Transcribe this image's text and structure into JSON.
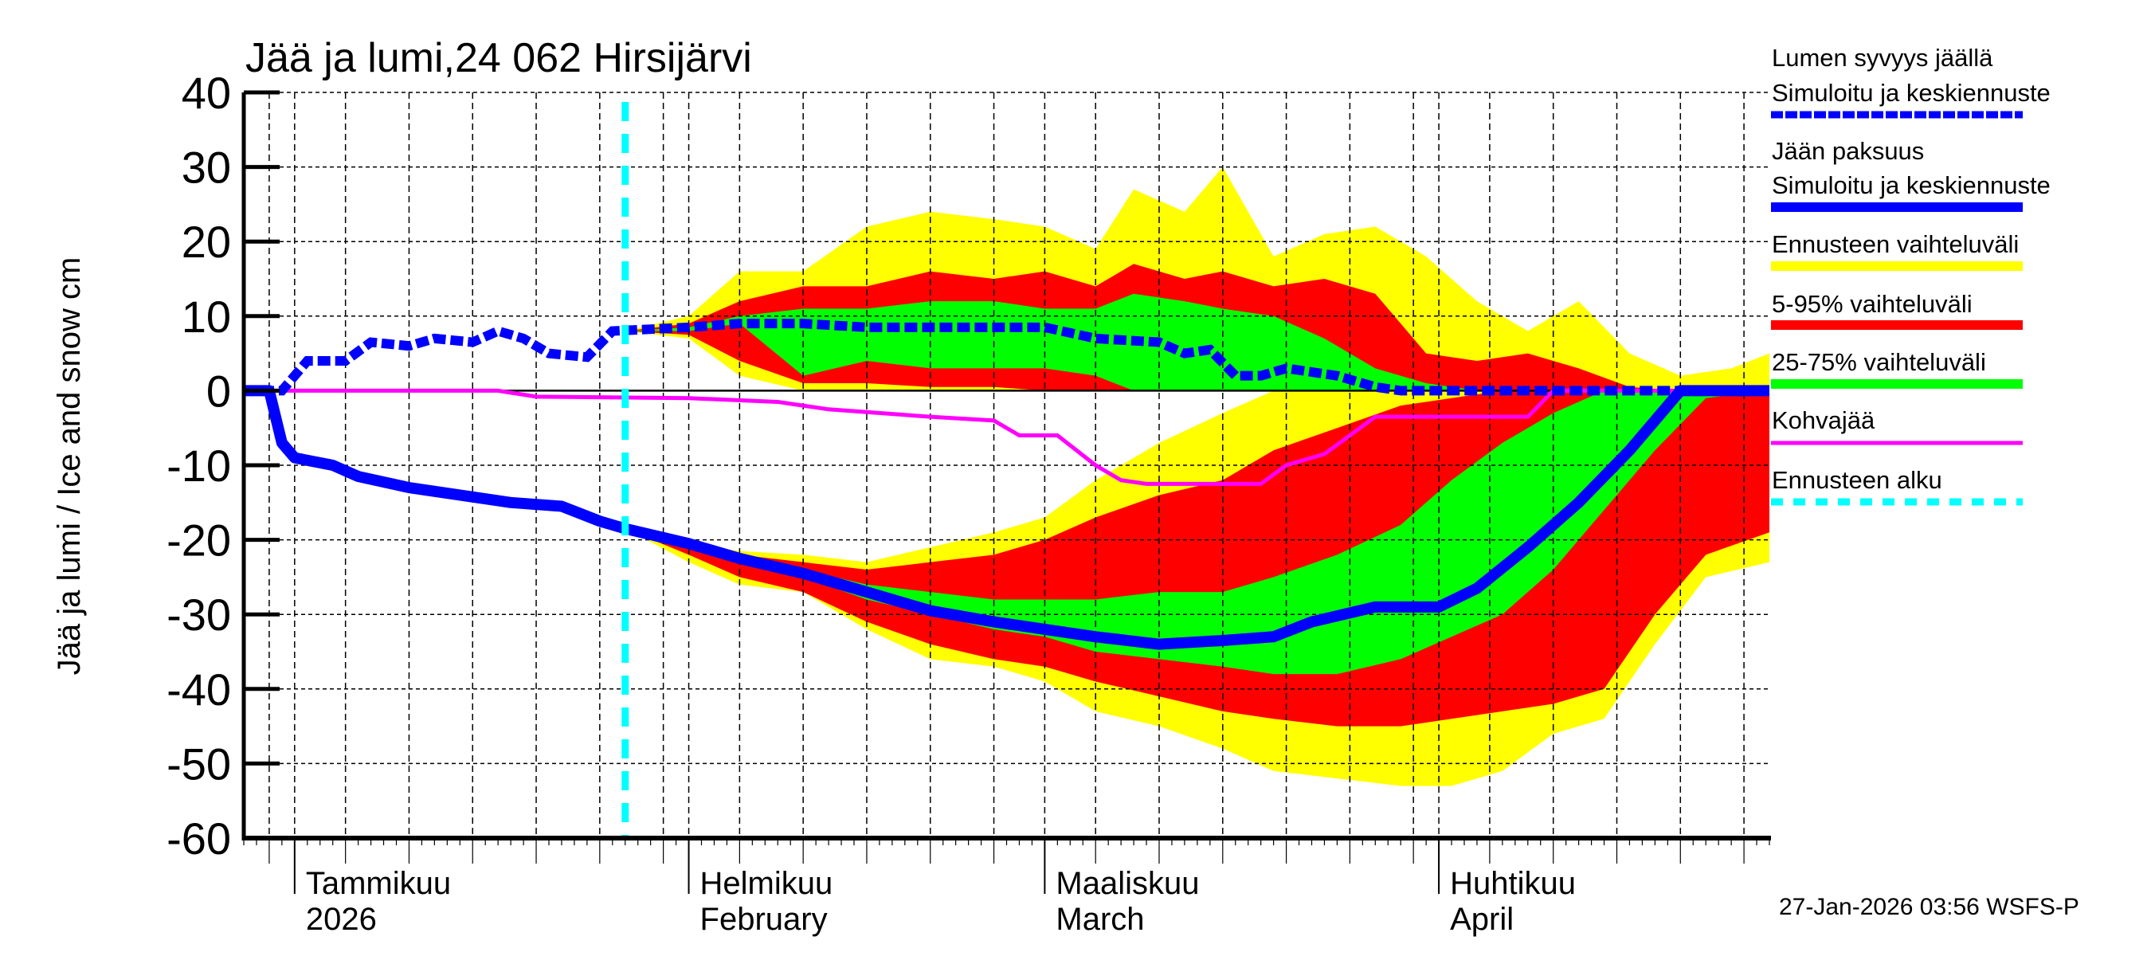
{
  "chart_data": {
    "type": "area",
    "title": "Jää ja lumi,24 062 Hirsijärvi",
    "ylabel": "Jää ja lumi / Ice and snow    cm",
    "ylim": [
      -60,
      40
    ],
    "yticks": [
      40,
      30,
      20,
      10,
      0,
      -10,
      -20,
      -30,
      -40,
      -50,
      -60
    ],
    "xlim": [
      "2025-12-28",
      "2026-04-27"
    ],
    "grid": true,
    "legend_placement": "right",
    "month_labels": [
      {
        "date": "2026-01-01",
        "line1": "Tammikuu",
        "line2": "2026"
      },
      {
        "date": "2026-02-01",
        "line1": "Helmikuu",
        "line2": "February"
      },
      {
        "date": "2026-03-01",
        "line1": "Maaliskuu",
        "line2": "March"
      },
      {
        "date": "2026-04-01",
        "line1": "Huhtikuu",
        "line2": "April"
      }
    ],
    "forecast_start": "2026-01-27",
    "colors": {
      "snow": "#0000ff",
      "ice": "#0000ff",
      "range": "#ffff00",
      "p5_95": "#ff0000",
      "p25_75": "#00ff00",
      "slush": "#ff00ff",
      "forecast_start": "#00ffff"
    },
    "legend": [
      {
        "line1": "Lumen syvyys jäällä",
        "line2": "Simuloitu ja keskiennuste",
        "key": "snow",
        "style": "dotted"
      },
      {
        "line1": "Jään paksuus",
        "line2": "Simuloitu ja keskiennuste",
        "key": "ice",
        "style": "solid"
      },
      {
        "line1": "Ennusteen vaihteluväli",
        "key": "range",
        "style": "band"
      },
      {
        "line1": "5-95% vaihteluväli",
        "key": "p5_95",
        "style": "band"
      },
      {
        "line1": "25-75% vaihteluväli",
        "key": "p25_75",
        "style": "band"
      },
      {
        "line1": "Kohvajää",
        "key": "slush",
        "style": "thin"
      },
      {
        "line1": "Ennusteen alku",
        "key": "forecast_start",
        "style": "dashed"
      }
    ],
    "snow_depth": [
      [
        "2025-12-28",
        0
      ],
      [
        "2025-12-31",
        0
      ],
      [
        "2026-01-02",
        4
      ],
      [
        "2026-01-05",
        4
      ],
      [
        "2026-01-07",
        6.5
      ],
      [
        "2026-01-10",
        6
      ],
      [
        "2026-01-12",
        7
      ],
      [
        "2026-01-15",
        6.5
      ],
      [
        "2026-01-17",
        8
      ],
      [
        "2026-01-19",
        7
      ],
      [
        "2026-01-21",
        5
      ],
      [
        "2026-01-24",
        4.5
      ],
      [
        "2026-01-26",
        8
      ],
      [
        "2026-02-01",
        8.5
      ],
      [
        "2026-02-05",
        9
      ],
      [
        "2026-02-10",
        9
      ],
      [
        "2026-02-15",
        8.5
      ],
      [
        "2026-02-20",
        8.5
      ],
      [
        "2026-02-25",
        8.5
      ],
      [
        "2026-03-01",
        8.5
      ],
      [
        "2026-03-05",
        7
      ],
      [
        "2026-03-10",
        6.5
      ],
      [
        "2026-03-12",
        5
      ],
      [
        "2026-03-14",
        5.5
      ],
      [
        "2026-03-16",
        2
      ],
      [
        "2026-03-18",
        2
      ],
      [
        "2026-03-20",
        3
      ],
      [
        "2026-03-24",
        2
      ],
      [
        "2026-03-27",
        0.5
      ],
      [
        "2026-03-29",
        0
      ],
      [
        "2026-04-27",
        0
      ]
    ],
    "ice_thickness": [
      [
        "2025-12-28",
        0
      ],
      [
        "2025-12-30",
        0
      ],
      [
        "2025-12-31",
        -7
      ],
      [
        "2026-01-01",
        -9
      ],
      [
        "2026-01-04",
        -10
      ],
      [
        "2026-01-06",
        -11.5
      ],
      [
        "2026-01-10",
        -13
      ],
      [
        "2026-01-14",
        -14
      ],
      [
        "2026-01-18",
        -15
      ],
      [
        "2026-01-22",
        -15.5
      ],
      [
        "2026-01-25",
        -17.5
      ],
      [
        "2026-01-27",
        -18.5
      ],
      [
        "2026-02-01",
        -20.5
      ],
      [
        "2026-02-05",
        -22.5
      ],
      [
        "2026-02-10",
        -24.5
      ],
      [
        "2026-02-15",
        -27
      ],
      [
        "2026-02-20",
        -29.5
      ],
      [
        "2026-02-25",
        -31
      ],
      [
        "2026-03-01",
        -32
      ],
      [
        "2026-03-05",
        -33
      ],
      [
        "2026-03-10",
        -34
      ],
      [
        "2026-03-15",
        -33.5
      ],
      [
        "2026-03-19",
        -33
      ],
      [
        "2026-03-22",
        -31
      ],
      [
        "2026-03-27",
        -29
      ],
      [
        "2026-04-01",
        -29
      ],
      [
        "2026-04-04",
        -26.5
      ],
      [
        "2026-04-08",
        -21
      ],
      [
        "2026-04-12",
        -15
      ],
      [
        "2026-04-16",
        -8
      ],
      [
        "2026-04-20",
        0
      ],
      [
        "2026-04-27",
        0
      ]
    ],
    "slush_ice": [
      [
        "2025-12-28",
        0
      ],
      [
        "2026-01-17",
        0
      ],
      [
        "2026-01-20",
        -0.8
      ],
      [
        "2026-02-01",
        -1
      ],
      [
        "2026-02-08",
        -1.5
      ],
      [
        "2026-02-12",
        -2.5
      ],
      [
        "2026-02-20",
        -3.5
      ],
      [
        "2026-02-25",
        -4
      ],
      [
        "2026-02-27",
        -6
      ],
      [
        "2026-03-02",
        -6
      ],
      [
        "2026-03-05",
        -10
      ],
      [
        "2026-03-07",
        -12
      ],
      [
        "2026-03-09",
        -12.5
      ],
      [
        "2026-03-18",
        -12.5
      ],
      [
        "2026-03-20",
        -10
      ],
      [
        "2026-03-23",
        -8.5
      ],
      [
        "2026-03-27",
        -3.5
      ],
      [
        "2026-04-08",
        -3.5
      ],
      [
        "2026-04-10",
        0
      ],
      [
        "2026-04-27",
        0
      ]
    ],
    "snow_bands_columns": [
      "date",
      "range_max",
      "p95",
      "p75",
      "p25",
      "p5",
      "range_min"
    ],
    "snow_bands": [
      [
        "2026-01-27",
        8,
        8,
        8,
        8,
        8,
        8
      ],
      [
        "2026-02-01",
        10,
        9,
        8.5,
        8,
        7.5,
        7
      ],
      [
        "2026-02-05",
        16,
        12,
        10,
        9,
        4,
        2
      ],
      [
        "2026-02-10",
        16,
        14,
        11,
        2,
        1,
        0
      ],
      [
        "2026-02-15",
        22,
        14,
        11,
        4,
        1,
        0
      ],
      [
        "2026-02-20",
        24,
        16,
        12,
        3,
        0.5,
        0
      ],
      [
        "2026-02-25",
        23,
        15,
        12,
        3,
        0.5,
        0
      ],
      [
        "2026-03-01",
        22,
        16,
        11,
        3,
        0,
        0
      ],
      [
        "2026-03-05",
        19,
        14,
        11,
        2,
        0,
        0
      ],
      [
        "2026-03-08",
        27,
        17,
        13,
        0,
        0,
        0
      ],
      [
        "2026-03-12",
        24,
        15,
        12,
        0,
        0,
        0
      ],
      [
        "2026-03-15",
        30,
        16,
        11,
        0,
        0,
        0
      ],
      [
        "2026-03-19",
        18,
        14,
        10,
        0,
        0,
        0
      ],
      [
        "2026-03-23",
        21,
        15,
        7,
        0,
        0,
        0
      ],
      [
        "2026-03-27",
        22,
        13,
        3,
        0,
        0,
        0
      ],
      [
        "2026-03-31",
        18,
        5,
        1,
        0,
        0,
        0
      ],
      [
        "2026-04-04",
        12,
        4,
        0,
        0,
        0,
        0
      ],
      [
        "2026-04-08",
        8,
        5,
        0,
        0,
        0,
        0
      ],
      [
        "2026-04-12",
        12,
        3,
        0,
        0,
        0,
        0
      ],
      [
        "2026-04-16",
        5,
        0.5,
        0,
        0,
        0,
        0
      ],
      [
        "2026-04-20",
        2,
        0,
        0,
        0,
        0,
        0
      ],
      [
        "2026-04-24",
        3,
        0,
        0,
        0,
        0,
        0
      ],
      [
        "2026-04-27",
        5,
        0,
        0,
        0,
        0,
        0
      ]
    ],
    "ice_bands_columns": [
      "date",
      "range_max",
      "p95",
      "p75",
      "p25",
      "p5",
      "range_min"
    ],
    "ice_bands": [
      [
        "2026-01-27",
        -18.5,
        -18.5,
        -18.5,
        -18.5,
        -18.5,
        -18.5
      ],
      [
        "2026-02-01",
        -20.5,
        -20.5,
        -20.5,
        -21,
        -22,
        -23
      ],
      [
        "2026-02-05",
        -21.5,
        -22,
        -22.5,
        -23,
        -25,
        -26
      ],
      [
        "2026-02-10",
        -22,
        -23,
        -24,
        -25,
        -27,
        -27
      ],
      [
        "2026-02-15",
        -23,
        -24,
        -26,
        -28,
        -31,
        -32
      ],
      [
        "2026-02-20",
        -21,
        -23,
        -27,
        -30,
        -34,
        -36
      ],
      [
        "2026-02-25",
        -19,
        -22,
        -28,
        -32,
        -36,
        -37
      ],
      [
        "2026-03-01",
        -17,
        -20,
        -28,
        -33,
        -37,
        -39
      ],
      [
        "2026-03-05",
        -12,
        -17,
        -28,
        -35,
        -39,
        -43
      ],
      [
        "2026-03-10",
        -7,
        -14,
        -27,
        -36,
        -41,
        -45
      ],
      [
        "2026-03-15",
        -3,
        -12,
        -27,
        -37,
        -43,
        -48
      ],
      [
        "2026-03-19",
        0,
        -8,
        -25,
        -38,
        -44,
        -51
      ],
      [
        "2026-03-24",
        0,
        -5,
        -22,
        -38,
        -45,
        -52
      ],
      [
        "2026-03-29",
        0,
        -2,
        -18,
        -36,
        -45,
        -53
      ],
      [
        "2026-04-02",
        0,
        -1,
        -12,
        -33,
        -44,
        -53
      ],
      [
        "2026-04-06",
        0,
        0,
        -7,
        -30,
        -43,
        -51
      ],
      [
        "2026-04-10",
        0,
        0,
        -3,
        -24,
        -42,
        -46
      ],
      [
        "2026-04-14",
        0,
        0,
        0,
        -16,
        -40,
        -44
      ],
      [
        "2026-04-18",
        0,
        0,
        0,
        -8,
        -30,
        -34
      ],
      [
        "2026-04-22",
        0,
        0,
        0,
        -1,
        -22,
        -25
      ],
      [
        "2026-04-27",
        0,
        0,
        0,
        0,
        -19,
        -23
      ]
    ]
  },
  "footer": {
    "timestamp": "27-Jan-2026 03:56 WSFS-P"
  }
}
